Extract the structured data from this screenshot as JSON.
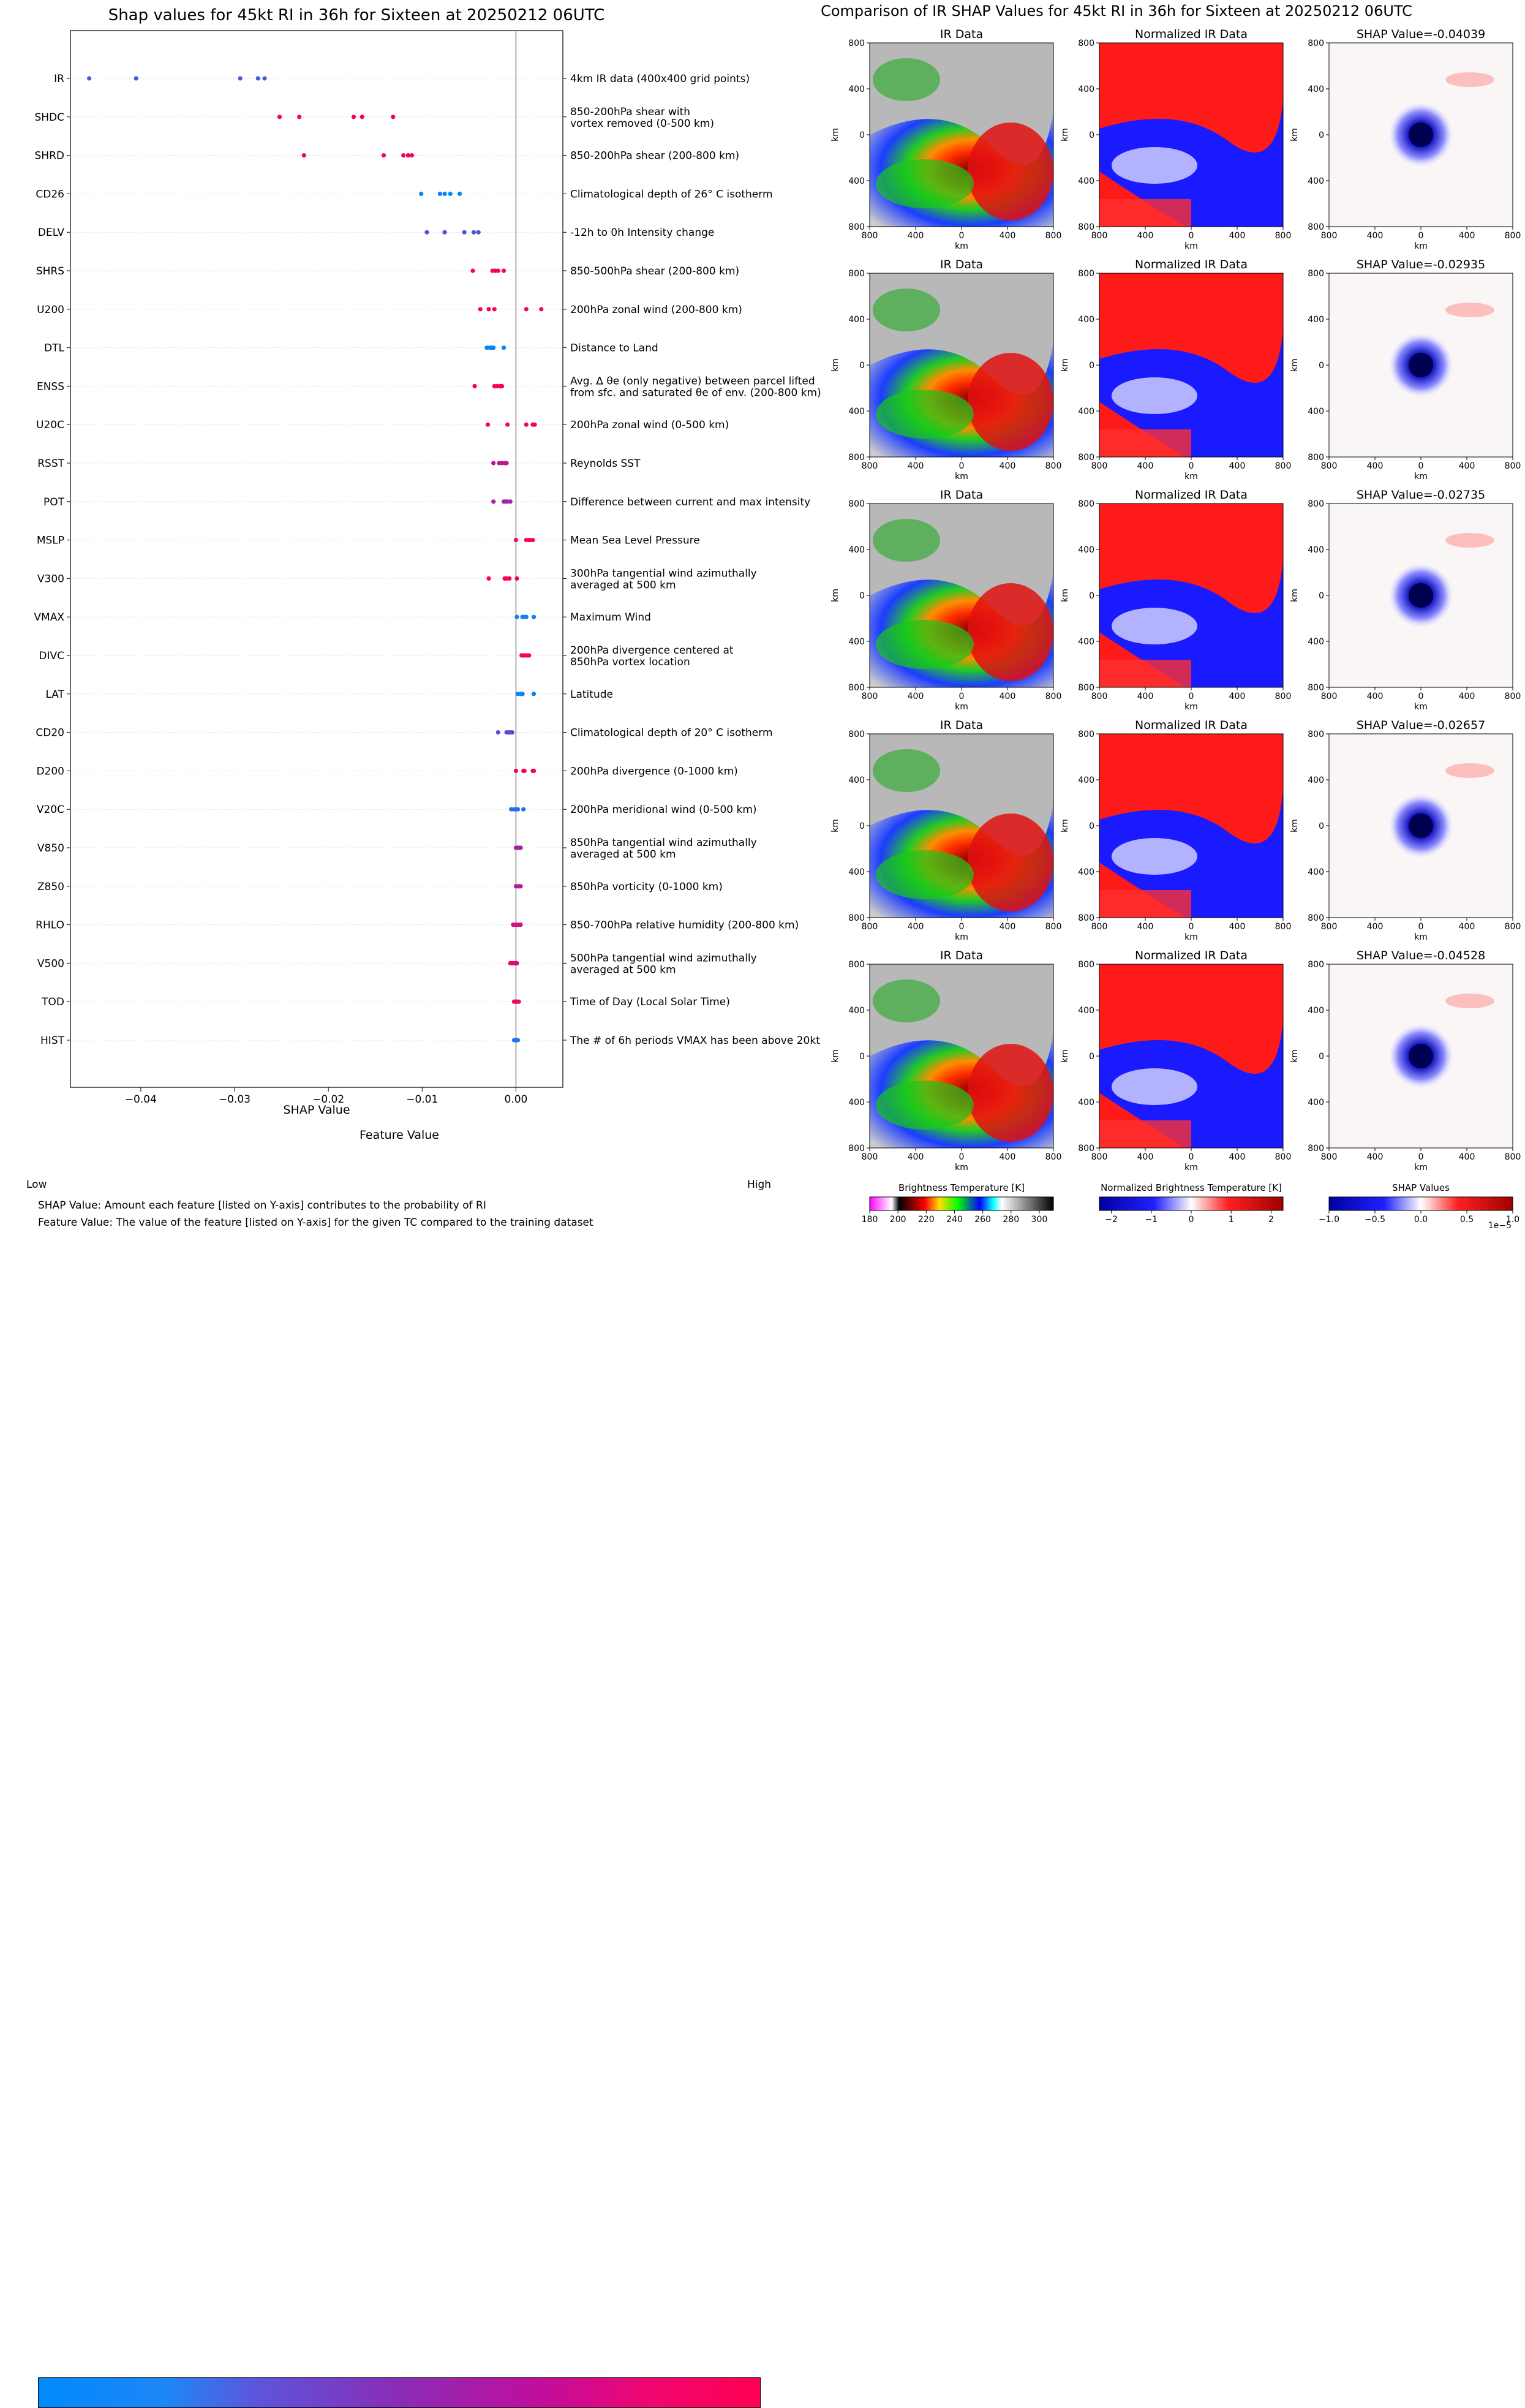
{
  "left_title": "Shap values for 45kt RI in 36h for Sixteen at 20250212 06UTC",
  "right_title": "Comparison of IR SHAP Values for 45kt RI in 36h for Sixteen at 20250212 06UTC",
  "chart_data": {
    "type": "scatter",
    "xlabel": "SHAP Value",
    "xlim": [
      -0.0475,
      0.005
    ],
    "xticks": [
      -0.04,
      -0.03,
      -0.02,
      -0.01,
      0.0
    ],
    "xtick_labels": [
      "−0.04",
      "−0.03",
      "−0.02",
      "−0.01",
      "0.00"
    ],
    "colors": {
      "low": "#008afb",
      "mid": "#8a2cb6",
      "high": "#ff0052"
    },
    "features": [
      {
        "name": "IR",
        "desc": "4km IR data (400x400 grid points)",
        "level": 0.25,
        "shap": [
          -0.0455,
          -0.0405,
          -0.0294,
          -0.0275,
          -0.0268
        ]
      },
      {
        "name": "SHDC",
        "desc": "850-200hPa shear with\nvortex removed (0-500 km)",
        "level": 0.97,
        "shap": [
          -0.0252,
          -0.0231,
          -0.0173,
          -0.0164,
          -0.0131
        ]
      },
      {
        "name": "SHRD",
        "desc": "850-200hPa shear (200-800 km)",
        "level": 0.97,
        "shap": [
          -0.0226,
          -0.0141,
          -0.012,
          -0.0115,
          -0.0111
        ]
      },
      {
        "name": "CD26",
        "desc": "Climatological depth of 26° C isotherm",
        "level": 0.02,
        "shap": [
          -0.0101,
          -0.0081,
          -0.0076,
          -0.007,
          -0.006
        ]
      },
      {
        "name": "DELV",
        "desc": "-12h to 0h Intensity change",
        "level": 0.3,
        "shap": [
          -0.0095,
          -0.0076,
          -0.0055,
          -0.0045,
          -0.004
        ]
      },
      {
        "name": "SHRS",
        "desc": "850-500hPa shear (200-800 km)",
        "level": 0.97,
        "shap": [
          -0.0046,
          -0.0025,
          -0.0022,
          -0.0019,
          -0.0013
        ]
      },
      {
        "name": "U200",
        "desc": "200hPa zonal wind (200-800 km)",
        "level": 0.97,
        "shap": [
          -0.0038,
          -0.0029,
          -0.0023,
          0.0011,
          0.0027
        ]
      },
      {
        "name": "DTL",
        "desc": "Distance to Land",
        "level": 0.03,
        "shap": [
          -0.0031,
          -0.0028,
          -0.0026,
          -0.0024,
          -0.0013
        ]
      },
      {
        "name": "ENSS",
        "desc": "Avg. Δ θe (only negative) between parcel lifted\nfrom sfc. and saturated θe of env. (200-800 km)",
        "level": 0.97,
        "shap": [
          -0.0044,
          -0.0023,
          -0.002,
          -0.0017,
          -0.0015
        ]
      },
      {
        "name": "U20C",
        "desc": "200hPa zonal wind (0-500 km)",
        "level": 0.97,
        "shap": [
          -0.003,
          -0.0009,
          0.0011,
          0.0018,
          0.002
        ]
      },
      {
        "name": "RSST",
        "desc": "Reynolds SST",
        "level": 0.7,
        "shap": [
          -0.0024,
          -0.0018,
          -0.0015,
          -0.0012,
          -0.001
        ]
      },
      {
        "name": "POT",
        "desc": "Difference between current and max intensity",
        "level": 0.6,
        "shap": [
          -0.0024,
          -0.0013,
          -0.0011,
          -0.0009,
          -0.0006
        ]
      },
      {
        "name": "MSLP",
        "desc": "Mean Sea Level Pressure",
        "level": 0.97,
        "shap": [
          0.0,
          0.0011,
          0.0014,
          0.0015,
          0.0018
        ]
      },
      {
        "name": "V300",
        "desc": "300hPa tangential wind azimuthally\naveraged at 500 km",
        "level": 0.97,
        "shap": [
          -0.0029,
          -0.0012,
          -0.001,
          -0.0007,
          0.0001
        ]
      },
      {
        "name": "VMAX",
        "desc": "Maximum Wind",
        "level": 0.05,
        "shap": [
          0.0001,
          0.0007,
          0.0009,
          0.0011,
          0.0019
        ]
      },
      {
        "name": "DIVC",
        "desc": "200hPa divergence centered at\n850hPa vortex location",
        "level": 0.97,
        "shap": [
          0.0006,
          0.0008,
          0.001,
          0.0012,
          0.0014
        ]
      },
      {
        "name": "LAT",
        "desc": "Latitude",
        "level": 0.05,
        "shap": [
          0.0002,
          0.0005,
          0.0006,
          0.0007,
          0.0019
        ]
      },
      {
        "name": "CD20",
        "desc": "Climatological depth of 20° C isotherm",
        "level": 0.35,
        "shap": [
          -0.0019,
          -0.001,
          -0.0008,
          -0.0006,
          -0.0004
        ]
      },
      {
        "name": "D200",
        "desc": "200hPa divergence (0-1000 km)",
        "level": 0.97,
        "shap": [
          0.0,
          0.0008,
          0.0009,
          0.0018,
          0.0019
        ]
      },
      {
        "name": "V20C",
        "desc": "200hPa meridional wind (0-500 km)",
        "level": 0.15,
        "shap": [
          -0.0005,
          -0.0002,
          0.0,
          0.0002,
          0.0008
        ]
      },
      {
        "name": "V850",
        "desc": "850hPa tangential wind azimuthally\naveraged at 500 km",
        "level": 0.6,
        "shap": [
          0.0,
          0.0002,
          0.0003,
          0.0004,
          0.0005
        ]
      },
      {
        "name": "Z850",
        "desc": "850hPa vorticity (0-1000 km)",
        "level": 0.65,
        "shap": [
          0.0,
          0.0002,
          0.0003,
          0.0004,
          0.0005
        ]
      },
      {
        "name": "RHLO",
        "desc": "850-700hPa relative humidity (200-800 km)",
        "level": 0.8,
        "shap": [
          -0.0003,
          -0.0001,
          0.0001,
          0.0003,
          0.0005
        ]
      },
      {
        "name": "V500",
        "desc": "500hPa tangential wind azimuthally\naveraged at 500 km",
        "level": 0.85,
        "shap": [
          -0.0006,
          -0.0004,
          -0.0002,
          -0.0001,
          0.0001
        ]
      },
      {
        "name": "TOD",
        "desc": "Time of Day (Local Solar Time)",
        "level": 0.9,
        "shap": [
          -0.0002,
          -0.0001,
          0.0,
          0.0001,
          0.0003
        ]
      },
      {
        "name": "HIST",
        "desc": "The # of 6h periods VMAX has been above 20kt",
        "level": 0.1,
        "shap": [
          -0.0002,
          -0.0001,
          0.0,
          0.0001,
          0.0002
        ]
      }
    ]
  },
  "colorbar": {
    "title": "Feature Value",
    "low": "Low",
    "high": "High"
  },
  "notes": [
    "SHAP Value: Amount each feature [listed on Y-axis] contributes to the probability of RI",
    "Feature Value: The value of the feature [listed on Y-axis] for the given TC compared to the training dataset"
  ],
  "panel_grid": {
    "column_titles": [
      "IR Data",
      "Normalized IR Data"
    ],
    "shap_titles": [
      "SHAP Value=-0.04039",
      "SHAP Value=-0.02935",
      "SHAP Value=-0.02735",
      "SHAP Value=-0.02657",
      "SHAP Value=-0.04528"
    ],
    "axis_label": "km",
    "axis_ticks": [
      "800",
      "400",
      "0",
      "400",
      "800"
    ]
  },
  "bottom_colorbars": [
    {
      "title": "Brightness Temperature [K]",
      "ticks": [
        "180",
        "200",
        "220",
        "240",
        "260",
        "280",
        "300"
      ],
      "range": [
        180,
        310
      ]
    },
    {
      "title": "Normalized Brightness Temperature [K]",
      "ticks": [
        "−2",
        "−1",
        "0",
        "1",
        "2"
      ],
      "range": [
        -2.3,
        2.3
      ]
    },
    {
      "title": "SHAP Values",
      "ticks": [
        "−1.0",
        "−0.5",
        "0.0",
        "0.5",
        "1.0"
      ],
      "range": [
        -1,
        1
      ],
      "exponent": "1e−5"
    }
  ]
}
